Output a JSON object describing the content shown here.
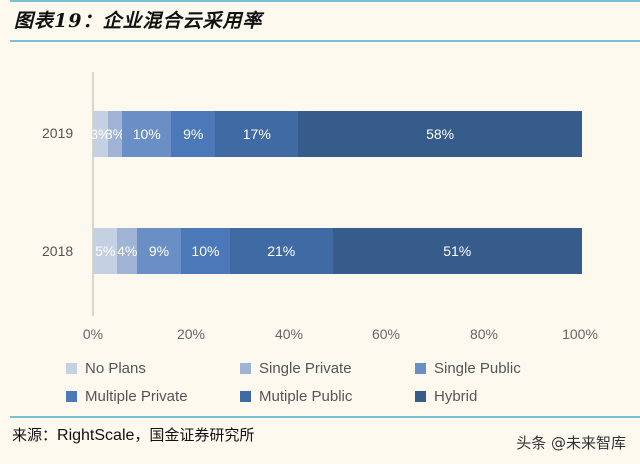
{
  "header": {
    "title": "图表19：企业混合云采用率"
  },
  "chart_data": {
    "type": "bar",
    "orientation": "horizontal",
    "stacked": true,
    "title": "图表19：企业混合云采用率",
    "xlabel": "",
    "ylabel": "",
    "xlim": [
      0,
      100
    ],
    "x_ticks": [
      "0%",
      "20%",
      "40%",
      "60%",
      "80%",
      "100%"
    ],
    "categories": [
      "2019",
      "2018"
    ],
    "series": [
      {
        "name": "No Plans",
        "color": "#c5d0e3",
        "values": [
          3,
          5
        ]
      },
      {
        "name": "Single Private",
        "color": "#9fb3d5",
        "values": [
          3,
          4
        ]
      },
      {
        "name": "Single Public",
        "color": "#6a8fc6",
        "values": [
          10,
          9
        ]
      },
      {
        "name": "Multiple Private",
        "color": "#4a78b8",
        "values": [
          9,
          10
        ]
      },
      {
        "name": "Mutiple Public",
        "color": "#3f6aa3",
        "values": [
          17,
          21
        ]
      },
      {
        "name": "Hybrid",
        "color": "#365c8c",
        "values": [
          58,
          51
        ]
      }
    ],
    "data_labels": {
      "2019": [
        "3%",
        "3%",
        "10%",
        "9%",
        "17%",
        "58%"
      ],
      "2018": [
        "5%",
        "4%",
        "9%",
        "10%",
        "21%",
        "51%"
      ]
    },
    "legend_position": "bottom",
    "grid": false
  },
  "legend": {
    "items": [
      {
        "label": "No Plans",
        "color": "#c5d0e3"
      },
      {
        "label": "Single Private",
        "color": "#9fb3d5"
      },
      {
        "label": "Single Public",
        "color": "#6a8fc6"
      },
      {
        "label": "Multiple Private",
        "color": "#4a78b8"
      },
      {
        "label": "Mutiple Public",
        "color": "#3f6aa3"
      },
      {
        "label": "Hybrid",
        "color": "#365c8c"
      }
    ]
  },
  "footer": {
    "source_prefix": "来源：",
    "source_en": "RightScale",
    "source_suffix": "，国金证券研究所",
    "watermark": "头条 @未来智库"
  }
}
